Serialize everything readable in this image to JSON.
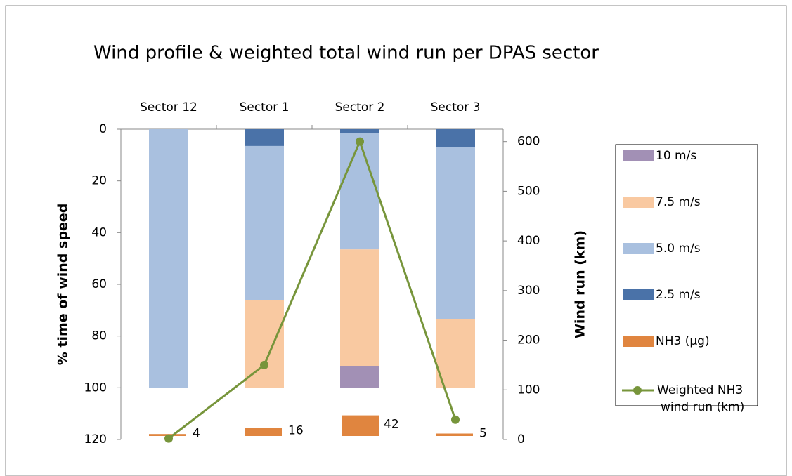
{
  "chart_data": {
    "type": "bar",
    "title": "Wind profile & weighted total wind run per DPAS sector",
    "categories": [
      "Sector 12",
      "Sector 1",
      "Sector 2",
      "Sector 3"
    ],
    "ylabel": "% time of wind speed",
    "y2label": "Wind run (km)",
    "ylim": [
      0,
      120
    ],
    "yticks": [
      0,
      20,
      40,
      60,
      80,
      100,
      120
    ],
    "y_reversed": true,
    "y2lim": [
      0,
      625
    ],
    "y2ticks": [
      0,
      100,
      200,
      300,
      400,
      500,
      600
    ],
    "series": [
      {
        "name": "2.5 m/s",
        "color": "#4a72a8",
        "values": [
          0,
          6.5,
          1.5,
          7
        ]
      },
      {
        "name": "5.0 m/s",
        "color": "#a9c0df",
        "values": [
          100,
          59.5,
          45,
          66.5
        ]
      },
      {
        "name": "7.5 m/s",
        "color": "#f9c9a1",
        "values": [
          0,
          34,
          45,
          26.5
        ]
      },
      {
        "name": "10 m/s",
        "color": "#a290b5",
        "values": [
          0,
          0,
          8.5,
          0
        ]
      },
      {
        "name": "NH3 (µg)",
        "color": "#e0853f",
        "values": [
          4,
          16,
          42,
          5
        ]
      },
      {
        "name": "Weighted NH3 wind run (km)",
        "color": "#77953b",
        "type": "line",
        "axis": "y2",
        "values": [
          2,
          150,
          600,
          40
        ]
      }
    ]
  }
}
